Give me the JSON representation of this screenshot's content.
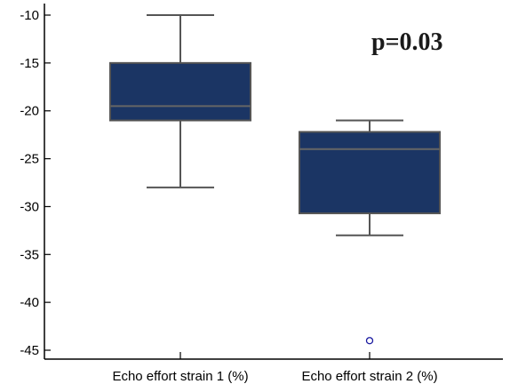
{
  "chart_data": {
    "type": "box",
    "title": "",
    "xlabel": "",
    "ylabel": "",
    "ylim": [
      -46,
      -9
    ],
    "yticks": [
      -10,
      -15,
      -20,
      -25,
      -30,
      -35,
      -40,
      -45
    ],
    "ytick_labels": [
      "-10",
      "-15",
      "-20",
      "-25",
      "-30",
      "-35",
      "-40",
      "-45"
    ],
    "categories": [
      "Echo effort strain 1 (%)",
      "Echo effort strain 2 (%)"
    ],
    "boxes": [
      {
        "whisker_low": -28,
        "q1": -21,
        "median": -19.5,
        "q3": -15,
        "whisker_high": -10,
        "outliers": []
      },
      {
        "whisker_low": -33,
        "q1": -30.7,
        "median": -24,
        "q3": -22.2,
        "whisker_high": -21,
        "outliers": [
          -44
        ]
      }
    ],
    "annotation": "p=0.03",
    "grid": false,
    "colors": {
      "box_fill": "#1b3564",
      "box_edge": "#555555",
      "whisker": "#555555",
      "median": "#666666",
      "outlier": "#1a1aa0",
      "axis": "#000000"
    }
  }
}
